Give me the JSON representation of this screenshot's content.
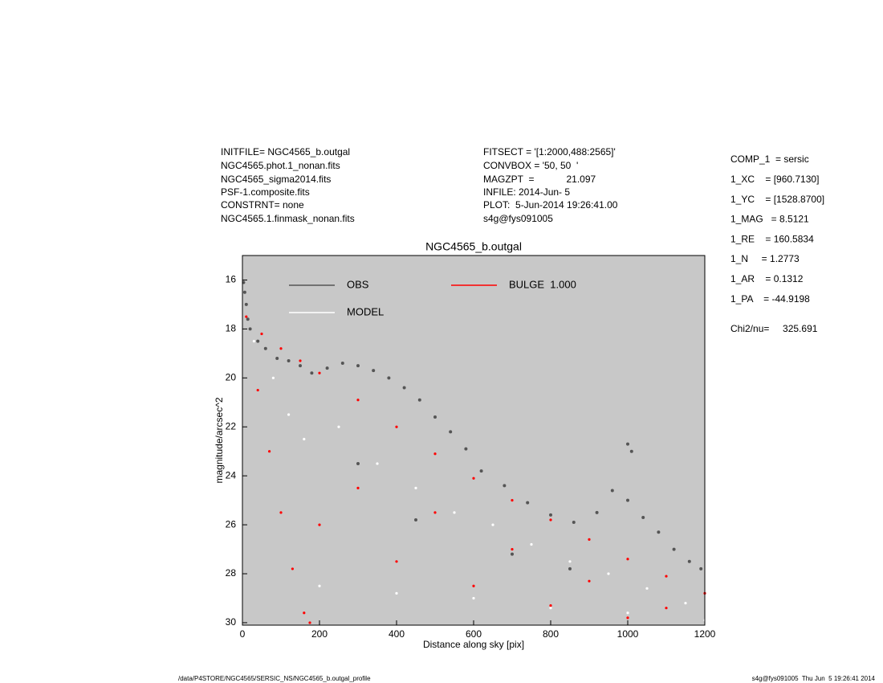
{
  "header": {
    "left": [
      "INITFILE= NGC4565_b.outgal",
      "NGC4565.phot.1_nonan.fits",
      "NGC4565_sigma2014.fits",
      "PSF-1.composite.fits",
      "CONSTRNT= none",
      "NGC4565.1.finmask_nonan.fits"
    ],
    "middle": [
      "FITSECT = '[1:2000,488:2565]'",
      "CONVBOX = '50, 50  '",
      "MAGZPT  =            21.097",
      "INFILE: 2014-Jun- 5",
      "PLOT:  5-Jun-2014 19:26:41.00",
      "s4g@fys091005"
    ],
    "params": [
      "COMP_1  = sersic",
      "1_XC    = [960.7130]",
      "1_YC    = [1528.8700]",
      "1_MAG   = 8.5121",
      "1_RE    = 160.5834",
      "1_N     = 1.2773",
      "1_AR    = 0.1312",
      "1_PA    = -44.9198"
    ],
    "chi2": "Chi2/nu=     325.691"
  },
  "footer": {
    "left": "/data/P4STORE/NGC4565/SERSIC_NS/NGC4565_b.outgal_profile",
    "right": "s4g@fys091005  Thu Jun  5 19:26:41 2014"
  },
  "chart_data": {
    "type": "scatter",
    "title": "NGC4565_b.outgal",
    "x_label": "Distance along sky [pix]",
    "y_label": "magnitude/arcsec^2",
    "xlim": [
      0,
      1200
    ],
    "xticks": [
      0,
      200,
      400,
      600,
      800,
      1000,
      1200
    ],
    "ylim": [
      30.1,
      15
    ],
    "yticks": [
      16,
      18,
      20,
      22,
      24,
      26,
      28,
      30
    ],
    "background": "#c8c8c8",
    "series": [
      {
        "name": "BULGE  1.000",
        "color": "#ff0000",
        "x": [
          10,
          50,
          100,
          150,
          200,
          300,
          400,
          500,
          600,
          700,
          800,
          900,
          1000,
          1100,
          1200,
          40,
          70,
          100,
          130,
          160,
          175,
          300,
          500,
          700,
          900,
          1100,
          200,
          400,
          600,
          800,
          1000
        ],
        "values": [
          17.5,
          18.2,
          18.8,
          19.3,
          19.8,
          20.9,
          22.0,
          23.1,
          24.1,
          25.0,
          25.8,
          26.6,
          27.4,
          28.1,
          28.8,
          20.5,
          23.0,
          25.5,
          27.8,
          29.6,
          30.0,
          24.5,
          25.5,
          27.0,
          28.3,
          29.4,
          26.0,
          27.5,
          28.5,
          29.3,
          29.8
        ]
      },
      {
        "name": "MODEL",
        "color": "#ffffff",
        "x": [
          30,
          80,
          120,
          160,
          250,
          350,
          450,
          550,
          650,
          750,
          850,
          950,
          1050,
          1150,
          200,
          400,
          600,
          800,
          1000,
          1200
        ],
        "values": [
          18.5,
          20.0,
          21.5,
          22.5,
          22.0,
          23.5,
          24.5,
          25.5,
          26.0,
          26.8,
          27.5,
          28.0,
          28.6,
          29.2,
          28.5,
          28.8,
          29.0,
          29.4,
          29.6,
          29.9
        ]
      },
      {
        "name": "OBS",
        "color": "#555555",
        "x": [
          3,
          6,
          10,
          14,
          20,
          40,
          60,
          90,
          120,
          150,
          180,
          220,
          260,
          300,
          340,
          380,
          420,
          460,
          500,
          540,
          580,
          620,
          680,
          740,
          800,
          860,
          920,
          960,
          1000,
          1040,
          1080,
          1120,
          1160,
          1190,
          300,
          450,
          700,
          850,
          1000,
          1010
        ],
        "values": [
          16.1,
          16.5,
          17.0,
          17.6,
          18.0,
          18.5,
          18.8,
          19.2,
          19.3,
          19.5,
          19.8,
          19.6,
          19.4,
          19.5,
          19.7,
          20.0,
          20.4,
          20.9,
          21.6,
          22.2,
          22.9,
          23.8,
          24.4,
          25.1,
          25.6,
          25.9,
          25.5,
          24.6,
          25.0,
          25.7,
          26.3,
          27.0,
          27.5,
          27.8,
          23.5,
          25.8,
          27.2,
          27.8,
          22.7,
          23.0
        ]
      }
    ]
  }
}
